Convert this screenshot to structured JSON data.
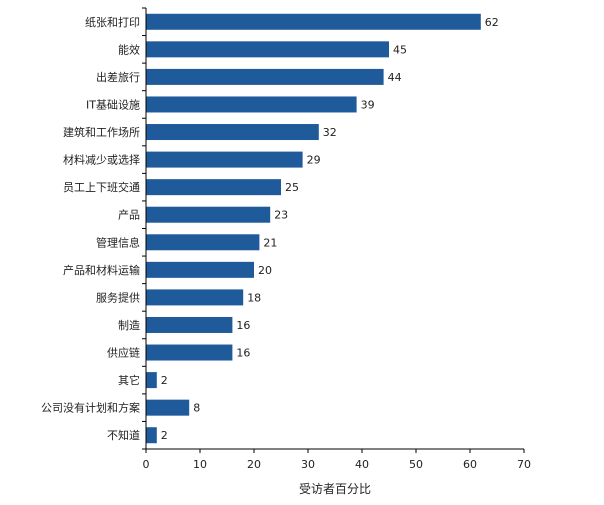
{
  "chart_data": {
    "type": "bar",
    "orientation": "horizontal",
    "categories": [
      "纸张和打印",
      "能效",
      "出差旅行",
      "IT基础设施",
      "建筑和工作场所",
      "材料减少或选择",
      "员工上下班交通",
      "产品",
      "管理信息",
      "产品和材料运输",
      "服务提供",
      "制造",
      "供应链",
      "其它",
      "公司没有计划和方案",
      "不知道"
    ],
    "values": [
      62,
      45,
      44,
      39,
      32,
      29,
      25,
      23,
      21,
      20,
      18,
      16,
      16,
      2,
      8,
      2
    ],
    "xlabel": "受访者百分比",
    "xlim": [
      0,
      70
    ],
    "xticks": [
      0,
      10,
      20,
      30,
      40,
      50,
      60,
      70
    ],
    "grid": false,
    "bar_color": "#1f5a9a"
  }
}
